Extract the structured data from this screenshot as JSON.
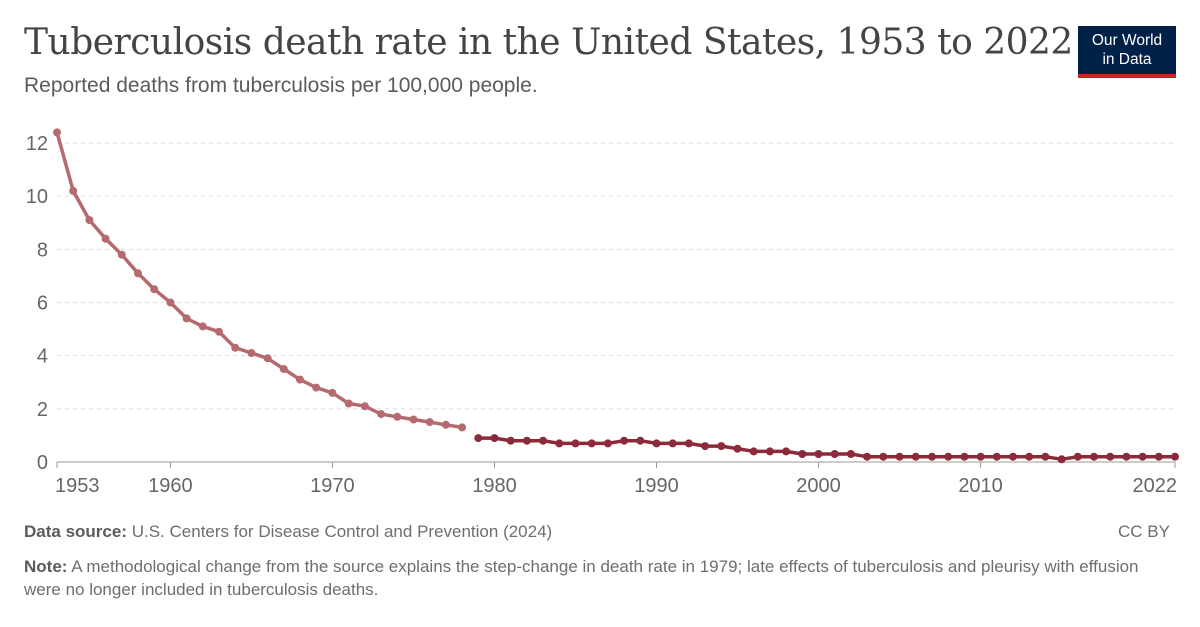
{
  "header": {
    "title": "Tuberculosis death rate in the United States, 1953 to 2022",
    "subtitle": "Reported deaths from tuberculosis per 100,000 people."
  },
  "logo": {
    "line1": "Our World",
    "line2": "in Data"
  },
  "footer": {
    "source_label": "Data source:",
    "source_text": "U.S. Centers for Disease Control and Prevention (2024)",
    "license": "CC BY",
    "note_label": "Note:",
    "note_text": "A methodological change from the source explains the step-change in death rate in 1979; late effects of tuberculosis and pleurisy with effusion were no longer included in tuberculosis deaths."
  },
  "chart_data": {
    "type": "line",
    "title": "Tuberculosis death rate in the United States, 1953 to 2022",
    "subtitle": "Reported deaths from tuberculosis per 100,000 people.",
    "xlabel": "",
    "ylabel": "",
    "xlim": [
      1953,
      2022
    ],
    "ylim": [
      0,
      12
    ],
    "x_ticks": [
      1953,
      1960,
      1970,
      1980,
      1990,
      2000,
      2010,
      2022
    ],
    "y_ticks": [
      0,
      2,
      4,
      6,
      8,
      10,
      12
    ],
    "grid": "horizontal dashed",
    "legend": "none",
    "series": [
      {
        "color": "#b46a6f",
        "x": [
          1953,
          1954,
          1955,
          1956,
          1957,
          1958,
          1959,
          1960,
          1961,
          1962,
          1963,
          1964,
          1965,
          1966,
          1967,
          1968,
          1969,
          1970,
          1971,
          1972,
          1973,
          1974,
          1975,
          1976,
          1977,
          1978
        ],
        "y": [
          12.4,
          10.2,
          9.1,
          8.4,
          7.8,
          7.1,
          6.5,
          6.0,
          5.4,
          5.1,
          4.9,
          4.3,
          4.1,
          3.9,
          3.5,
          3.1,
          2.8,
          2.6,
          2.2,
          2.1,
          1.8,
          1.7,
          1.6,
          1.5,
          1.4,
          1.3
        ]
      },
      {
        "color": "#8c2a3a",
        "x": [
          1979,
          1980,
          1981,
          1982,
          1983,
          1984,
          1985,
          1986,
          1987,
          1988,
          1989,
          1990,
          1991,
          1992,
          1993,
          1994,
          1995,
          1996,
          1997,
          1998,
          1999,
          2000,
          2001,
          2002,
          2003,
          2004,
          2005,
          2006,
          2007,
          2008,
          2009,
          2010,
          2011,
          2012,
          2013,
          2014,
          2015,
          2016,
          2017,
          2018,
          2019,
          2020,
          2021,
          2022
        ],
        "y": [
          0.9,
          0.9,
          0.8,
          0.8,
          0.8,
          0.7,
          0.7,
          0.7,
          0.7,
          0.8,
          0.8,
          0.7,
          0.7,
          0.7,
          0.6,
          0.6,
          0.5,
          0.4,
          0.4,
          0.4,
          0.3,
          0.3,
          0.3,
          0.3,
          0.2,
          0.2,
          0.2,
          0.2,
          0.2,
          0.2,
          0.2,
          0.2,
          0.2,
          0.2,
          0.2,
          0.2,
          0.1,
          0.2,
          0.2,
          0.2,
          0.2,
          0.2,
          0.2,
          0.2
        ]
      }
    ]
  }
}
